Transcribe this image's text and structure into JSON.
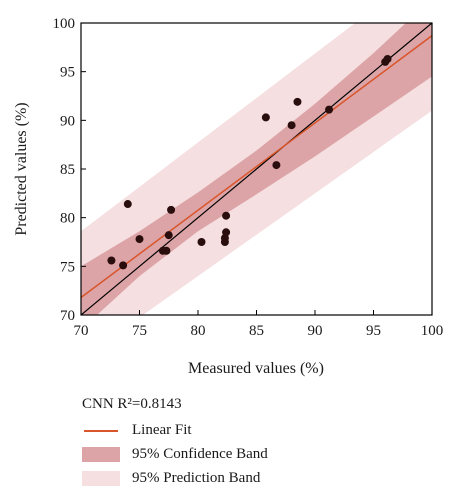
{
  "chart_data": {
    "type": "scatter",
    "xlabel": "Measured values (%)",
    "ylabel": "Predicted values (%)",
    "xlim": [
      70,
      100
    ],
    "ylim": [
      70,
      100
    ],
    "xticks": [
      "70",
      "75",
      "80",
      "85",
      "90",
      "95",
      "100"
    ],
    "yticks": [
      "70",
      "75",
      "80",
      "85",
      "90",
      "95",
      "100"
    ],
    "points": [
      {
        "x": 72.6,
        "y": 75.6
      },
      {
        "x": 73.6,
        "y": 75.1
      },
      {
        "x": 74.0,
        "y": 81.4
      },
      {
        "x": 75.0,
        "y": 77.8
      },
      {
        "x": 77.0,
        "y": 76.6
      },
      {
        "x": 77.3,
        "y": 76.6
      },
      {
        "x": 77.5,
        "y": 78.2
      },
      {
        "x": 77.7,
        "y": 80.8
      },
      {
        "x": 80.3,
        "y": 77.5
      },
      {
        "x": 82.3,
        "y": 77.5
      },
      {
        "x": 82.3,
        "y": 77.9
      },
      {
        "x": 82.4,
        "y": 78.5
      },
      {
        "x": 82.4,
        "y": 80.2
      },
      {
        "x": 85.8,
        "y": 90.3
      },
      {
        "x": 86.7,
        "y": 85.4
      },
      {
        "x": 88.0,
        "y": 89.5
      },
      {
        "x": 88.5,
        "y": 91.9
      },
      {
        "x": 91.2,
        "y": 91.1
      },
      {
        "x": 96.0,
        "y": 96.0
      },
      {
        "x": 96.2,
        "y": 96.3
      }
    ],
    "identity_line": {
      "from": [
        70,
        70
      ],
      "to": [
        100,
        100
      ]
    },
    "linear_fit": {
      "x": [
        70,
        100
      ],
      "y": [
        71.8,
        98.7
      ]
    },
    "confidence_band": {
      "x": [
        70,
        75,
        80,
        85,
        90,
        95,
        100
      ],
      "lower": [
        68.5,
        74.0,
        78.6,
        82.4,
        86.3,
        90.4,
        94.5
      ],
      "upper": [
        75.0,
        78.6,
        82.6,
        86.9,
        91.7,
        96.9,
        102.5
      ]
    },
    "prediction_band": {
      "x": [
        70,
        100
      ],
      "lower": [
        65.5,
        91.0
      ],
      "upper": [
        78.6,
        106.0
      ]
    },
    "legend": {
      "title": "CNN R²=0.8143",
      "entries": [
        {
          "label": "Linear Fit",
          "kind": "line",
          "color": "#d9552b"
        },
        {
          "label": "95% Confidence Band",
          "kind": "fill",
          "color": "#dca4a6"
        },
        {
          "label": "95% Prediction Band",
          "kind": "fill",
          "color": "#f5dfe1"
        }
      ],
      "placement": "bottom-left"
    },
    "colors": {
      "points": "#2a0e0e",
      "identity": "#000000",
      "fit": "#d9552b",
      "confidence": "#dca4a6",
      "prediction": "#f5dfe1"
    }
  }
}
